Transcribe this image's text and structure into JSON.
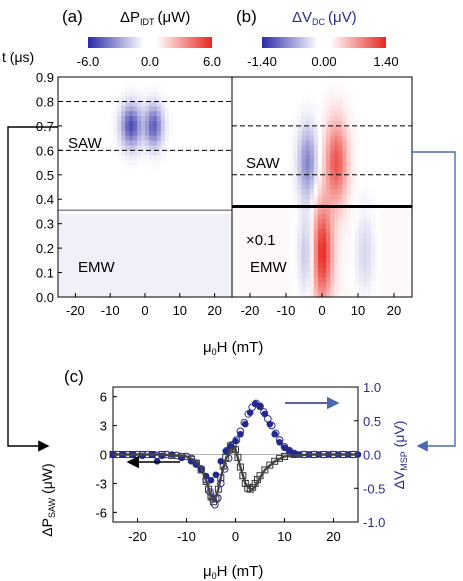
{
  "colors": {
    "neg": "#2a2aa8",
    "pos": "#e8261f",
    "mid": "#ffffff",
    "series_dp": "#333333",
    "series_dv": "#1f2a8c",
    "arrow_blue": "#4a6ab0"
  },
  "top_panels": [
    {
      "panel_label": "(a)",
      "colorbar": {
        "quantity": "ΔP",
        "sub": "IDT",
        "unit": "(μW)",
        "min_label": "-6.0",
        "mid_label": "0.0",
        "max_label": "6.0"
      },
      "annotations": {
        "saw": "SAW",
        "emw": "EMW"
      }
    },
    {
      "panel_label": "(b)",
      "colorbar": {
        "quantity": "ΔV",
        "sub": "DC",
        "unit": "(μV)",
        "min_label": "-1.40",
        "mid_label": "0.00",
        "max_label": "1.40"
      },
      "annotations": {
        "saw": "SAW",
        "emw": "EMW",
        "scale": "×0.1"
      }
    }
  ],
  "top_axes": {
    "ylabel": "t (μs)",
    "y_ticks": [
      "0.0",
      "0.1",
      "0.2",
      "0.3",
      "0.4",
      "0.5",
      "0.6",
      "0.7",
      "0.8",
      "0.9"
    ],
    "x_ticks": [
      "-20",
      "-10",
      "0",
      "10",
      "20"
    ],
    "xlabel_mu": "μ",
    "xlabel_sub": "0",
    "xlabel_rest": "H (mT)"
  },
  "bottom": {
    "panel_label": "(c)",
    "ylabel_left": {
      "main": "ΔP",
      "sub": "SAW",
      "unit": " (μW)"
    },
    "ylabel_right": {
      "main": "ΔV",
      "sub": "MSP",
      "unit": " (μV)"
    },
    "left_ticks": [
      "6",
      "3",
      "0",
      "-3",
      "-6"
    ],
    "right_ticks": [
      "1.0",
      "0.5",
      "0.0",
      "-0.5",
      "-1.0"
    ],
    "x_ticks": [
      "-20",
      "-10",
      "0",
      "10",
      "20"
    ],
    "xlabel_mu": "μ",
    "xlabel_sub": "0",
    "xlabel_rest": "H (mT)"
  },
  "chart_data": [
    {
      "type": "heatmap",
      "x_range": [
        -25,
        25
      ],
      "y_range": [
        0,
        0.9
      ],
      "color_range": [
        -6,
        6
      ],
      "saw_window": [
        0.6,
        0.8
      ],
      "emw_window": [
        0,
        0.35
      ],
      "blobs": [
        {
          "x": -4,
          "t": 0.7,
          "value": -5.0,
          "sx": 2.0,
          "st": 0.06
        },
        {
          "x": 2.5,
          "t": 0.7,
          "value": -4.5,
          "sx": 1.8,
          "st": 0.06
        }
      ],
      "emw_level": -0.6
    },
    {
      "type": "heatmap",
      "x_range": [
        -25,
        25
      ],
      "y_range": [
        0,
        0.9
      ],
      "color_range": [
        -1.4,
        1.4
      ],
      "saw_window": [
        0.5,
        0.7
      ],
      "emw_window": [
        0,
        0.37
      ],
      "emw_scale": 0.1,
      "blobs": [
        {
          "x": -4,
          "t": 0.55,
          "value": -0.8,
          "sx": 1.8,
          "st": 0.1
        },
        {
          "x": 4,
          "t": 0.55,
          "value": 1.1,
          "sx": 2.2,
          "st": 0.12
        },
        {
          "x": -4,
          "t": 0.18,
          "value": -0.5,
          "sx": 1.8,
          "st": 0.12
        },
        {
          "x": 0,
          "t": 0.18,
          "value": 1.35,
          "sx": 2.0,
          "st": 0.14
        },
        {
          "x": 12,
          "t": 0.18,
          "value": -0.3,
          "sx": 2.0,
          "st": 0.12
        }
      ],
      "emw_level": 0.25
    },
    {
      "type": "scatter",
      "x_range": [
        -25,
        25
      ],
      "y_left_range": [
        -7,
        7
      ],
      "y_right_range": [
        -1.0,
        1.0
      ],
      "series": [
        {
          "axis": "left",
          "marker": "open-square",
          "x": [
            -25,
            -23,
            -21,
            -19,
            -17,
            -15,
            -13,
            -11,
            -9,
            -8,
            -7,
            -6,
            -5.5,
            -5,
            -4.5,
            -4,
            -3.5,
            -3,
            -2.5,
            -2,
            -1.5,
            -1,
            -0.5,
            0,
            0.5,
            1,
            1.5,
            2,
            2.5,
            3,
            3.5,
            4,
            4.5,
            5,
            6,
            7,
            8,
            9,
            10,
            12,
            14,
            16,
            18,
            20,
            22,
            24
          ],
          "y": [
            0,
            0,
            0,
            0,
            0,
            0,
            -0.1,
            -0.2,
            -0.5,
            -0.9,
            -1.6,
            -2.8,
            -3.6,
            -4.4,
            -4.9,
            -4.6,
            -3.6,
            -2.4,
            -1.2,
            -0.3,
            0.4,
            0.9,
            1.0,
            0.5,
            -0.3,
            -1.3,
            -2.2,
            -3.0,
            -3.5,
            -3.6,
            -3.4,
            -3.0,
            -2.6,
            -2.2,
            -1.6,
            -1.1,
            -0.7,
            -0.4,
            -0.2,
            0,
            0,
            0,
            0,
            0,
            0,
            0
          ]
        },
        {
          "axis": "right",
          "marker": "filled-circle",
          "x": [
            -25,
            -23,
            -21,
            -19,
            -17,
            -16,
            -15,
            -13,
            -11,
            -9,
            -8,
            -7,
            -6,
            -5,
            -4,
            -3,
            -2,
            -1,
            0,
            1,
            2,
            3,
            4,
            5,
            6,
            7,
            8,
            9,
            10,
            11,
            12,
            13,
            15,
            17,
            19,
            21,
            23,
            25
          ],
          "y": [
            0,
            0,
            0,
            -0.02,
            0,
            -0.1,
            -0.02,
            0,
            -0.05,
            -0.1,
            -0.15,
            -0.22,
            -0.32,
            -0.38,
            -0.3,
            -0.1,
            0.05,
            0.12,
            0.2,
            0.3,
            0.45,
            0.62,
            0.75,
            0.72,
            0.6,
            0.45,
            0.3,
            0.18,
            0.1,
            0.05,
            0.02,
            0,
            0,
            0,
            0,
            0,
            0,
            0
          ]
        },
        {
          "axis": "left",
          "marker": "open-circle",
          "x": [
            -24,
            -22,
            -20,
            -18,
            -16,
            -14,
            -12,
            -10,
            -9,
            -8,
            -7,
            -6,
            -5.2,
            -4.7,
            -4.2,
            -3.6,
            -3,
            -2.2,
            -1.4,
            -0.6,
            0.2,
            1,
            1.8,
            2.6,
            3.4,
            4.2,
            5,
            5.8,
            6.6,
            7.4,
            8.2,
            9,
            10,
            11,
            12,
            14,
            16,
            18,
            20,
            22,
            24
          ],
          "y": [
            0,
            0,
            0,
            0,
            -0.1,
            0,
            -0.1,
            -0.2,
            -0.4,
            -0.9,
            -1.5,
            -2.6,
            -3.9,
            -4.6,
            -5.2,
            -4.5,
            -3.0,
            -1.5,
            -0.4,
            0.6,
            1.5,
            2.4,
            3.3,
            4.2,
            4.9,
            5.3,
            5.0,
            4.4,
            3.7,
            3.0,
            2.2,
            1.5,
            0.8,
            0.4,
            0.1,
            0,
            0,
            0,
            0,
            0,
            0
          ]
        },
        {
          "axis": "left",
          "marker": "line",
          "x": [
            -25,
            -15,
            -10,
            -8,
            -7,
            -6,
            -5,
            -4.5,
            -4,
            -3.5,
            -3,
            -2,
            -1,
            0,
            1,
            2,
            3,
            3.5,
            4,
            5,
            6,
            8,
            10,
            15,
            25
          ],
          "y": [
            0,
            0,
            -0.2,
            -0.7,
            -1.4,
            -2.7,
            -4.3,
            -4.8,
            -4.4,
            -3.6,
            -2.4,
            -0.5,
            0.6,
            0.5,
            -1.3,
            -3.0,
            -3.6,
            -3.6,
            -3.3,
            -2.4,
            -1.6,
            -0.7,
            -0.2,
            0,
            0
          ]
        }
      ]
    }
  ]
}
